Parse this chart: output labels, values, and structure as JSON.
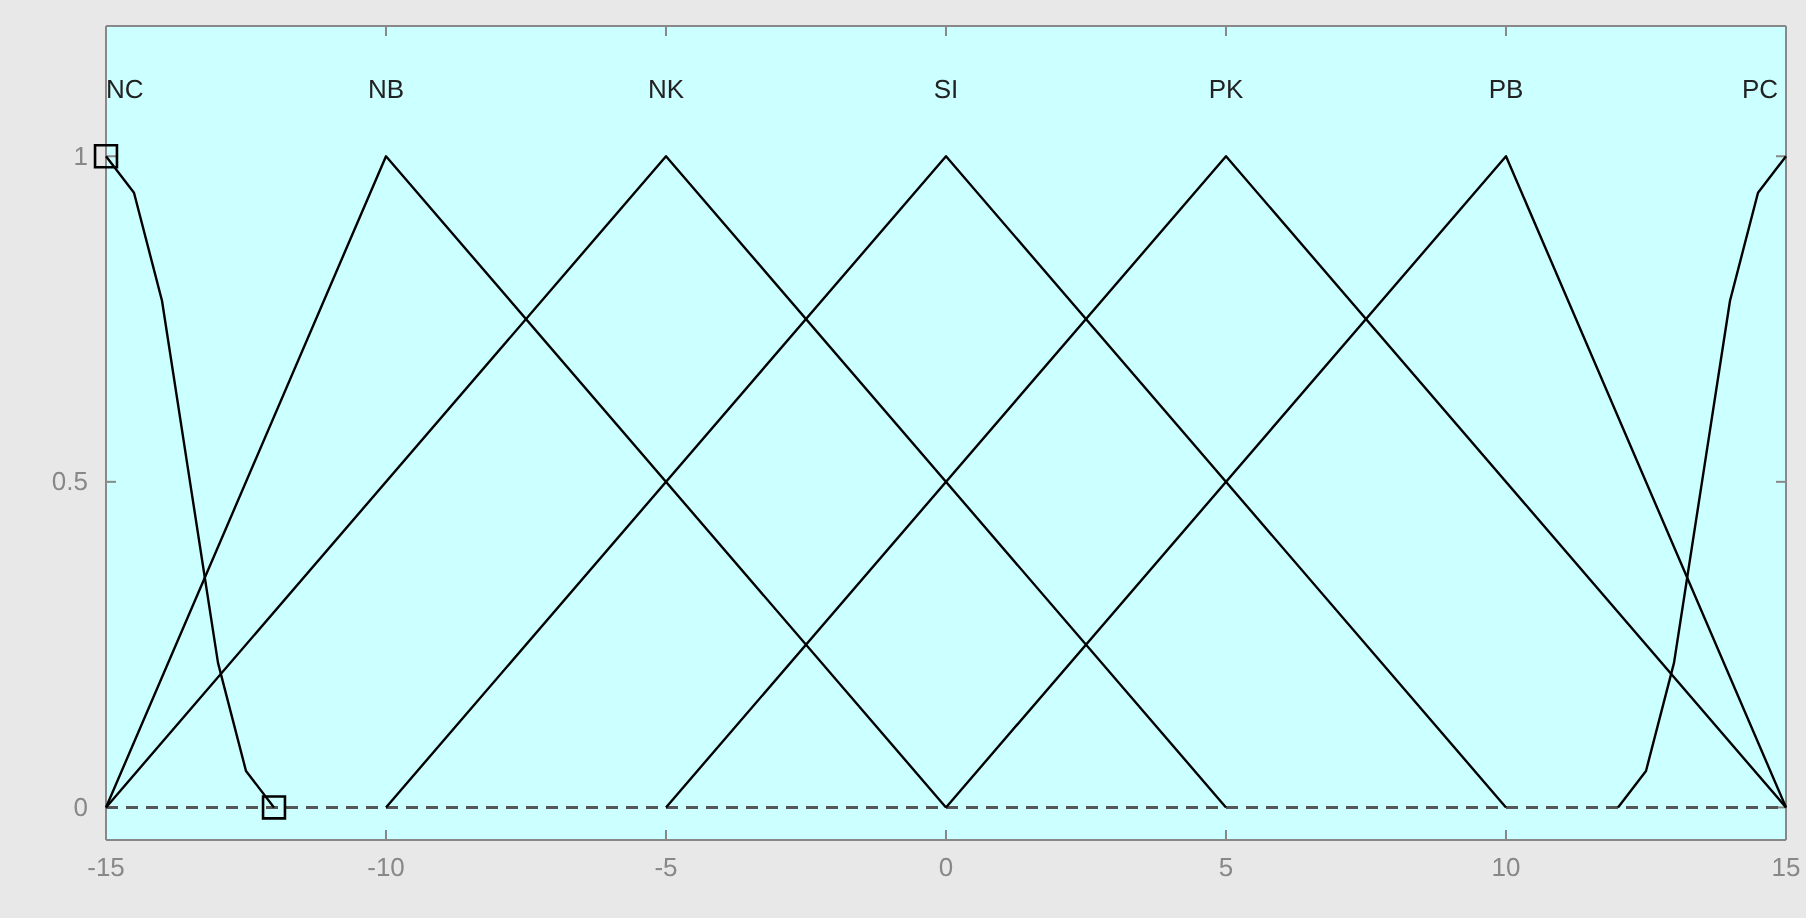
{
  "chart_data": {
    "type": "line",
    "xlim": [
      -15,
      15
    ],
    "ylim": [
      -0.05,
      1.2
    ],
    "xticks": [
      -15,
      -10,
      -5,
      0,
      5,
      10,
      15
    ],
    "yticks": [
      0,
      0.5,
      1
    ],
    "grid": false,
    "legend": false,
    "marker": "none",
    "line_style": "solid",
    "ref_lines": [
      {
        "axis": "y",
        "value": 0,
        "color": "#555555",
        "line_style": "dashed"
      }
    ],
    "series": [
      {
        "name": "NC",
        "color": "#000000",
        "x": [
          -15,
          -14.5,
          -14,
          -13.5,
          -13,
          -12.5,
          -12
        ],
        "values": [
          1,
          0.944,
          0.778,
          0.5,
          0.222,
          0.056,
          0
        ]
      },
      {
        "name": "NB",
        "color": "#000000",
        "x": [
          -15,
          -10,
          0
        ],
        "values": [
          0,
          1,
          0
        ]
      },
      {
        "name": "NK",
        "color": "#000000",
        "x": [
          -15,
          -5,
          5
        ],
        "values": [
          0,
          1,
          0
        ]
      },
      {
        "name": "SI",
        "color": "#000000",
        "x": [
          -10,
          0,
          10
        ],
        "values": [
          0,
          1,
          0
        ]
      },
      {
        "name": "PK",
        "color": "#000000",
        "x": [
          -5,
          5,
          15
        ],
        "values": [
          0,
          1,
          0
        ]
      },
      {
        "name": "PB",
        "color": "#000000",
        "x": [
          0,
          10,
          15
        ],
        "values": [
          0,
          1,
          0
        ]
      },
      {
        "name": "PC",
        "color": "#000000",
        "x": [
          12,
          12.5,
          13,
          13.5,
          14,
          14.5,
          15
        ],
        "values": [
          0,
          0.056,
          0.222,
          0.5,
          0.778,
          0.944,
          1
        ]
      },
      {
        "type": "scatter",
        "marker": "square",
        "color": "#000000",
        "x": [
          -15,
          -12
        ],
        "values": [
          1,
          0
        ]
      }
    ]
  }
}
